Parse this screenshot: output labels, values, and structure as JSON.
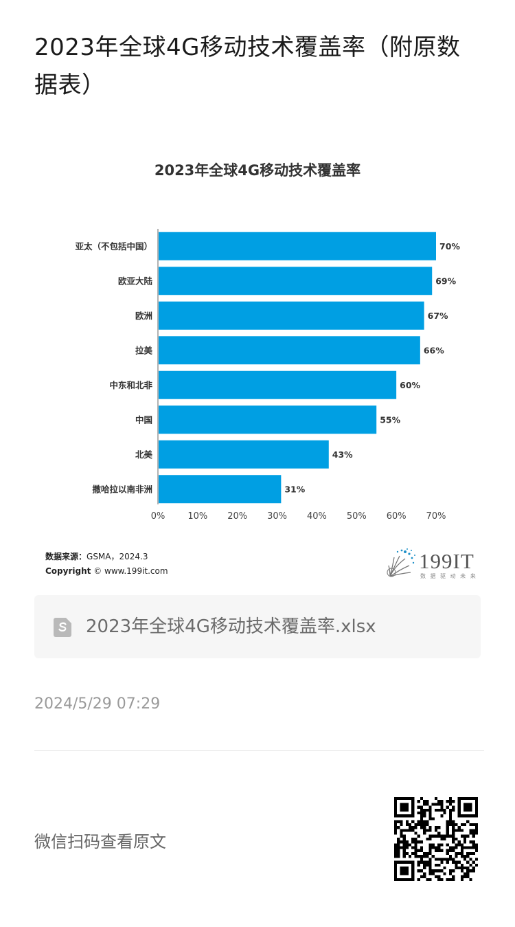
{
  "article": {
    "title": "2023年全球4G移动技术覆盖率（附原数据表）"
  },
  "chart_data": {
    "type": "bar",
    "orientation": "horizontal",
    "title": "2023年全球4G移动技术覆盖率",
    "categories": [
      "亚太（不包括中国）",
      "欧亚大陆",
      "欧洲",
      "拉美",
      "中东和北非",
      "中国",
      "北美",
      "撒哈拉以南非洲"
    ],
    "values": [
      70,
      69,
      67,
      66,
      60,
      55,
      43,
      31
    ],
    "value_labels": [
      "70%",
      "69%",
      "67%",
      "66%",
      "60%",
      "55%",
      "43%",
      "31%"
    ],
    "xlim": [
      0,
      70
    ],
    "xticks": [
      "0%",
      "10%",
      "20%",
      "30%",
      "40%",
      "50%",
      "60%",
      "70%"
    ],
    "bar_color": "#009fe3",
    "grid": false
  },
  "source_note": {
    "label": "数据来源：",
    "value": "GSMA，2024.3",
    "copyright_label": "Copyright",
    "copyright_value": "© www.199it.com"
  },
  "logo": {
    "text": "199IT",
    "tagline": "数 据 驱 动 未 来"
  },
  "attachment": {
    "icon": "spreadsheet-file-icon",
    "file_name": "2023年全球4G移动技术覆盖率.xlsx"
  },
  "timestamp": "2024/5/29 07:29",
  "scan_hint": "微信扫码查看原文",
  "colors": {
    "accent": "#009fe3",
    "text": "#1a1a1a",
    "muted": "#9a9a9a"
  }
}
